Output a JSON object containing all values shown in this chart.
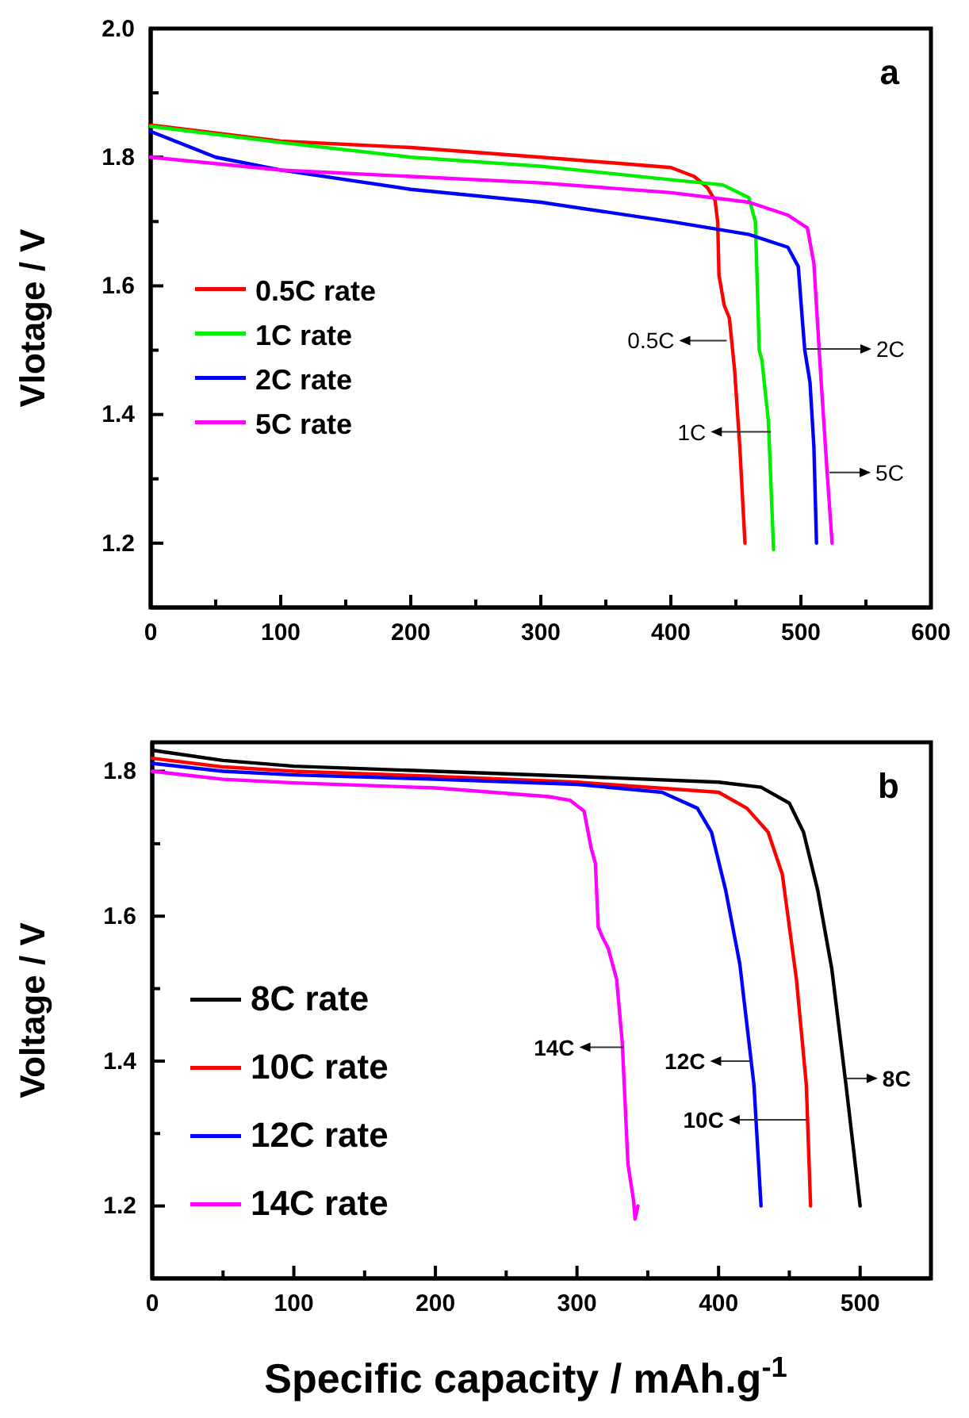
{
  "chart_data": [
    {
      "type": "line",
      "title": "a",
      "ylabel": "Vlotage / V",
      "xlim": [
        0,
        600
      ],
      "ylim": [
        1.1,
        2.0
      ],
      "xticks": [
        0,
        {
          "value": 50,
          "label": null
        },
        100,
        {
          "value": 150,
          "label": null
        },
        200,
        {
          "value": 250,
          "label": null
        },
        300,
        {
          "value": 350,
          "label": null
        },
        400,
        {
          "value": 450,
          "label": null
        },
        500,
        {
          "value": 550,
          "label": null
        },
        600
      ],
      "yticks": [
        {
          "value": 1.2,
          "label": "1.2"
        },
        {
          "value": 1.3,
          "label": null
        },
        {
          "value": 1.4,
          "label": "1.4"
        },
        {
          "value": 1.5,
          "label": null
        },
        {
          "value": 1.6,
          "label": "1.6"
        },
        {
          "value": 1.7,
          "label": null
        },
        {
          "value": 1.8,
          "label": "1.8"
        },
        {
          "value": 1.9,
          "label": null
        },
        {
          "value": 2.0,
          "label": "2.0"
        }
      ],
      "legend": "left",
      "grid": false,
      "line_style": "solid",
      "marker": "none",
      "series": [
        {
          "name": "0.5C rate",
          "color": "#ff0000",
          "x": [
            0,
            100,
            200,
            300,
            400,
            418,
            428,
            434,
            436,
            437,
            441,
            445,
            449,
            453,
            457
          ],
          "values": [
            1.85,
            1.825,
            1.815,
            1.8,
            1.784,
            1.77,
            1.753,
            1.733,
            1.7,
            1.617,
            1.57,
            1.55,
            1.47,
            1.35,
            1.2
          ]
        },
        {
          "name": "1C rate",
          "color": "#00ee00",
          "x": [
            0,
            100,
            200,
            300,
            400,
            440,
            460,
            465,
            468,
            470,
            475,
            479
          ],
          "values": [
            1.848,
            1.823,
            1.8,
            1.786,
            1.765,
            1.757,
            1.737,
            1.7,
            1.5,
            1.485,
            1.39,
            1.19
          ]
        },
        {
          "name": "2C rate",
          "color": "#0000ff",
          "x": [
            0,
            50,
            100,
            200,
            300,
            400,
            460,
            490,
            498,
            501,
            503,
            507,
            510,
            512
          ],
          "values": [
            1.84,
            1.8,
            1.78,
            1.75,
            1.73,
            1.7,
            1.68,
            1.66,
            1.63,
            1.55,
            1.5,
            1.45,
            1.35,
            1.2
          ]
        },
        {
          "name": "5C rate",
          "color": "#ff00ff",
          "x": [
            0,
            100,
            200,
            300,
            400,
            460,
            490,
            505,
            510,
            515,
            520,
            524
          ],
          "values": [
            1.8,
            1.78,
            1.77,
            1.76,
            1.745,
            1.73,
            1.71,
            1.69,
            1.635,
            1.47,
            1.315,
            1.2
          ]
        }
      ],
      "annotations": [
        {
          "text": "0.5C",
          "x": 443,
          "y": 1.515
        },
        {
          "text": "1C",
          "x": 477,
          "y": 1.373
        },
        {
          "text": "2C",
          "x": 503,
          "y": 1.502
        },
        {
          "text": "5C",
          "x": 522,
          "y": 1.31
        }
      ]
    },
    {
      "type": "line",
      "title": "b",
      "xlabel": "Specific capacity / mAh.g$^{-1}$",
      "ylabel": "Voltage / V",
      "xlim": [
        0,
        550
      ],
      "ylim": [
        1.1,
        1.84
      ],
      "xticks": [
        0,
        {
          "value": 50,
          "label": null
        },
        100,
        {
          "value": 150,
          "label": null
        },
        200,
        {
          "value": 250,
          "label": null
        },
        300,
        {
          "value": 350,
          "label": null
        },
        400,
        {
          "value": 450,
          "label": null
        },
        500
      ],
      "yticks": [
        {
          "value": 1.2,
          "label": "1.2"
        },
        {
          "value": 1.3,
          "label": null
        },
        {
          "value": 1.4,
          "label": "1.4"
        },
        {
          "value": 1.5,
          "label": null
        },
        {
          "value": 1.6,
          "label": "1.6"
        },
        {
          "value": 1.7,
          "label": null
        },
        {
          "value": 1.8,
          "label": "1.8"
        }
      ],
      "legend": "bottom left",
      "grid": false,
      "line_style": "solid",
      "marker": "none",
      "series": [
        {
          "name": "8C rate",
          "color": "#000000",
          "x": [
            0,
            50,
            100,
            200,
            300,
            400,
            430,
            450,
            460,
            470,
            480,
            490,
            500
          ],
          "values": [
            1.829,
            1.815,
            1.807,
            1.8,
            1.793,
            1.785,
            1.778,
            1.756,
            1.716,
            1.636,
            1.527,
            1.367,
            1.2
          ]
        },
        {
          "name": "10C rate",
          "color": "#ff0000",
          "x": [
            0,
            50,
            100,
            200,
            300,
            400,
            420,
            435,
            445,
            455,
            462,
            465
          ],
          "values": [
            1.818,
            1.806,
            1.8,
            1.793,
            1.785,
            1.771,
            1.749,
            1.716,
            1.658,
            1.513,
            1.367,
            1.2
          ]
        },
        {
          "name": "12C rate",
          "color": "#0000ff",
          "x": [
            0,
            50,
            100,
            200,
            300,
            360,
            385,
            395,
            405,
            415,
            425,
            430
          ],
          "values": [
            1.811,
            1.8,
            1.795,
            1.789,
            1.782,
            1.771,
            1.749,
            1.716,
            1.636,
            1.534,
            1.367,
            1.2
          ]
        },
        {
          "name": "14C rate",
          "color": "#ff00ff",
          "x": [
            0,
            50,
            100,
            200,
            280,
            295,
            305,
            310,
            313,
            315,
            318,
            322,
            328,
            332,
            336,
            340,
            341,
            343
          ],
          "values": [
            1.8,
            1.789,
            1.784,
            1.777,
            1.765,
            1.76,
            1.745,
            1.694,
            1.673,
            1.585,
            1.571,
            1.556,
            1.513,
            1.425,
            1.258,
            1.207,
            1.182,
            1.2
          ]
        }
      ],
      "annotations": [
        {
          "text": "14C",
          "x": 333,
          "y": 1.419
        },
        {
          "text": "12C",
          "x": 422,
          "y": 1.4
        },
        {
          "text": "10C",
          "x": 462,
          "y": 1.319
        },
        {
          "text": "8C",
          "x": 490,
          "y": 1.376
        }
      ]
    }
  ]
}
